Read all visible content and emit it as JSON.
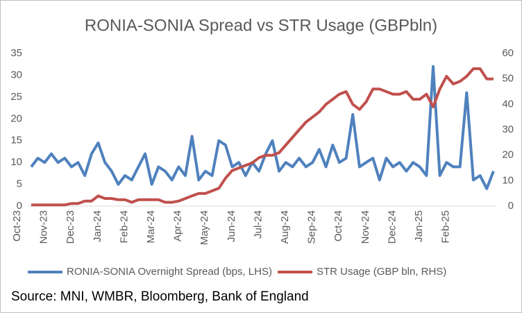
{
  "chart_data": {
    "type": "line",
    "title": "RONIA-SONIA Spread vs STR Usage (GBPbln)",
    "source": "Source: MNI, WMBR, Bloomberg, Bank of England",
    "categories": [
      "Oct-23",
      null,
      null,
      null,
      "Nov-23",
      null,
      null,
      null,
      "Dec-23",
      null,
      null,
      null,
      "Jan-24",
      null,
      null,
      null,
      "Feb-24",
      null,
      null,
      null,
      "Mar-24",
      null,
      null,
      null,
      "Apr-24",
      null,
      null,
      null,
      "May-24",
      null,
      null,
      null,
      "Jun-24",
      null,
      null,
      null,
      "Jul-24",
      null,
      null,
      null,
      "Aug-24",
      null,
      null,
      null,
      "Sep-24",
      null,
      null,
      null,
      "Oct-24",
      null,
      null,
      null,
      "Nov-24",
      null,
      null,
      null,
      "Dec-24",
      null,
      null,
      null,
      "Jan-25",
      null,
      null,
      null,
      "Feb-25",
      null,
      null,
      null,
      null,
      null
    ],
    "series": [
      {
        "name": "RONIA-SONIA Overnight Spread (bps, LHS)",
        "color": "#4f81bd",
        "axis": "y",
        "values": [
          9,
          11,
          10,
          12,
          10,
          11,
          9,
          10,
          7,
          12,
          14.5,
          10,
          8,
          5,
          7,
          6,
          9,
          12,
          5,
          9,
          8,
          6,
          9,
          7,
          16,
          6,
          8,
          7,
          15,
          14,
          9,
          10,
          7,
          10,
          8,
          12,
          15,
          8,
          10,
          9,
          11,
          9,
          10,
          13,
          9,
          14,
          10,
          11,
          21,
          9,
          10,
          11,
          6,
          11,
          9,
          10,
          8,
          10,
          9,
          7,
          32,
          7,
          10,
          9,
          9,
          26,
          6,
          7,
          4,
          8
        ]
      },
      {
        "name": "STR Usage (GBP bln, RHS)",
        "color": "#c0504d",
        "axis": "y2",
        "values": [
          0.5,
          0.5,
          0.5,
          0.5,
          0.5,
          0.5,
          1,
          1,
          2,
          2,
          4,
          3,
          3,
          2.5,
          2.5,
          1.5,
          2.5,
          2.5,
          2.5,
          2.5,
          1.5,
          1.5,
          2,
          3,
          4,
          5,
          5,
          6,
          7,
          11,
          14,
          15,
          16,
          17,
          19,
          20,
          20,
          21,
          24,
          27,
          30,
          33,
          35,
          37,
          40,
          42,
          44,
          45,
          40,
          38,
          41,
          46,
          46,
          45,
          44,
          44,
          45,
          42,
          42,
          44,
          39,
          46,
          51,
          48,
          49,
          51,
          54,
          54,
          50,
          50
        ]
      }
    ],
    "ylim": [
      0,
      35
    ],
    "yticks": [
      0,
      5,
      10,
      15,
      20,
      25,
      30,
      35
    ],
    "y2lim": [
      0,
      60
    ],
    "y2ticks": [
      0,
      10,
      20,
      30,
      40,
      50,
      60
    ],
    "grid": false,
    "legend": "bottom"
  }
}
